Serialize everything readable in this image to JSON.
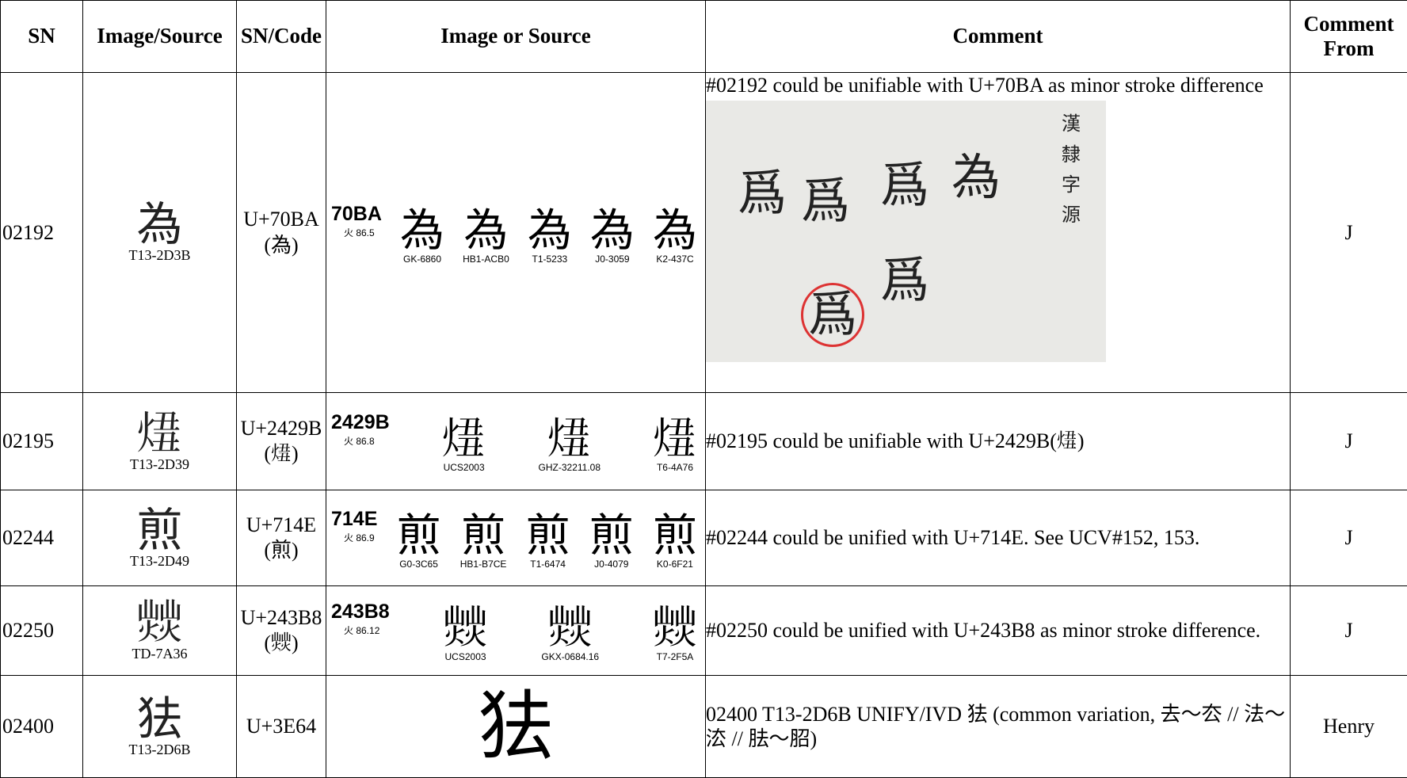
{
  "table": {
    "header": [
      "SN",
      "Image/Source",
      "SN/Code",
      "Image or Source",
      "Comment",
      "Comment From"
    ],
    "rows": [
      {
        "sn": "02192",
        "glyph": "為",
        "source": "T13-2D3B",
        "code": "U+70BA(為)",
        "evidence": {
          "code": "70BA",
          "radical": "火 86.5",
          "glyphs": [
            {
              "char": "為",
              "label": "GK-6860"
            },
            {
              "char": "為",
              "label": "HB1-ACB0"
            },
            {
              "char": "為",
              "label": "T1-5233"
            },
            {
              "char": "為",
              "label": "J0-3059"
            },
            {
              "char": "為",
              "label": "K2-437C"
            }
          ]
        },
        "comment": "#02192 could be unifiable with U+70BA as minor stroke difference",
        "comment_image": {
          "title": "漢隸字源",
          "chars": [
            "爲",
            "爲",
            "爲",
            "為",
            "爲",
            "爲"
          ]
        },
        "from": "J"
      },
      {
        "sn": "02195",
        "glyph": "𤊛",
        "source": "T13-2D39",
        "code": "U+2429B (𤊛)",
        "evidence": {
          "code": "2429B",
          "radical": "火 86.8",
          "glyphs": [
            {
              "char": "𤊛",
              "label": "UCS2003"
            },
            {
              "char": "𤊛",
              "label": "GHZ-32211.08"
            },
            {
              "char": "𤊛",
              "label": "T6-4A76"
            }
          ]
        },
        "comment": "#02195 could be unifiable with U+2429B(𤊛)",
        "from": "J"
      },
      {
        "sn": "02244",
        "glyph": "煎",
        "source": "T13-2D49",
        "code": "U+714E (煎)",
        "evidence": {
          "code": "714E",
          "radical": "火 86.9",
          "glyphs": [
            {
              "char": "煎",
              "label": "G0-3C65"
            },
            {
              "char": "煎",
              "label": "HB1-B7CE"
            },
            {
              "char": "煎",
              "label": "T1-6474"
            },
            {
              "char": "煎",
              "label": "J0-4079"
            },
            {
              "char": "煎",
              "label": "K0-6F21"
            }
          ]
        },
        "comment": "#02244 could be unified with U+714E. See UCV#152, 153.",
        "from": "J"
      },
      {
        "sn": "02250",
        "glyph": "𤎸",
        "source": "TD-7A36",
        "code": "U+243B8(𤎸)",
        "evidence": {
          "code": "243B8",
          "radical": "火 86.12",
          "glyphs": [
            {
              "char": "𤎸",
              "label": "UCS2003"
            },
            {
              "char": "𤎸",
              "label": "GKX-0684.16"
            },
            {
              "char": "𤎸",
              "label": "T7-2F5A"
            }
          ]
        },
        "comment": "#02250 could be unified with U+243B8 as minor stroke difference.",
        "from": "J"
      },
      {
        "sn": "02400",
        "glyph": "㹤",
        "source": "T13-2D6B",
        "code": "U+3E64",
        "evidence": {
          "glyph": "㹤"
        },
        "comment": "02400 T13-2D6B UNIFY/IVD 㹤 (common variation, 去～厺 // 法～㳒 // 胠～𦚔)",
        "from": "Henry"
      }
    ]
  }
}
